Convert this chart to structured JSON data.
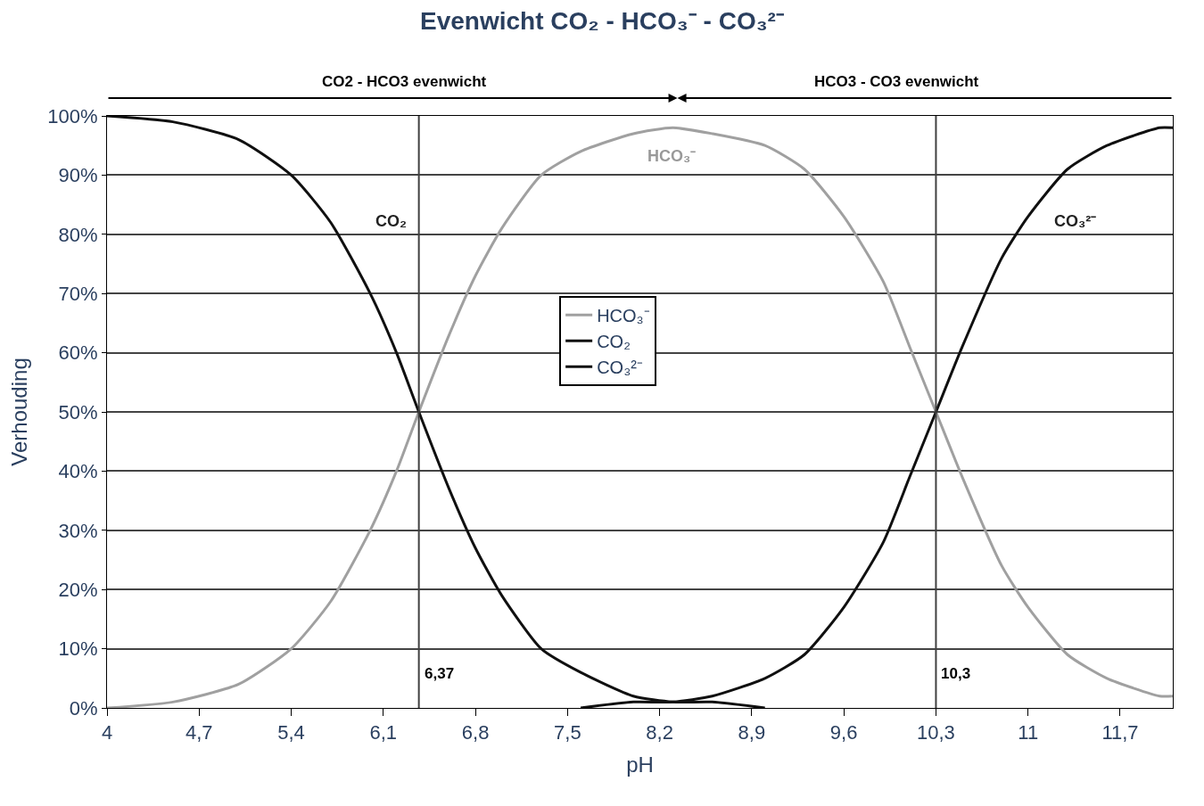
{
  "chart_data": {
    "type": "line",
    "title": "Evenwicht CO₂ - HCO₃⁻ - CO₃²⁻",
    "xlabel": "pH",
    "ylabel": "Verhouding",
    "xlim": [
      4,
      12.1
    ],
    "xticks": [
      {
        "value": 4,
        "label": "4"
      },
      {
        "value": 4.7,
        "label": "4,7"
      },
      {
        "value": 5.4,
        "label": "5,4"
      },
      {
        "value": 6.1,
        "label": "6,1"
      },
      {
        "value": 6.8,
        "label": "6,8"
      },
      {
        "value": 7.5,
        "label": "7,5"
      },
      {
        "value": 8.2,
        "label": "8,2"
      },
      {
        "value": 8.9,
        "label": "8,9"
      },
      {
        "value": 9.6,
        "label": "9,6"
      },
      {
        "value": 10.3,
        "label": "10,3"
      },
      {
        "value": 11,
        "label": "11"
      },
      {
        "value": 11.7,
        "label": "11,7"
      }
    ],
    "ylim": [
      0,
      100
    ],
    "yticks": [
      {
        "value": 0,
        "label": "0%"
      },
      {
        "value": 10,
        "label": "10%"
      },
      {
        "value": 20,
        "label": "20%"
      },
      {
        "value": 30,
        "label": "30%"
      },
      {
        "value": 40,
        "label": "40%"
      },
      {
        "value": 50,
        "label": "50%"
      },
      {
        "value": 60,
        "label": "60%"
      },
      {
        "value": 70,
        "label": "70%"
      },
      {
        "value": 80,
        "label": "80%"
      },
      {
        "value": 90,
        "label": "90%"
      },
      {
        "value": 100,
        "label": "100%"
      }
    ],
    "grid": "y",
    "legend": "center",
    "marker": "none",
    "line_style": "solid",
    "series": [
      {
        "name": "HCO₃⁻",
        "color": "#a0a0a0",
        "x": [
          4,
          4.5,
          5,
          5.4,
          5.7,
          6,
          6.2,
          6.37,
          6.6,
          6.8,
          7,
          7.3,
          7.6,
          8,
          8.3,
          8.6,
          9,
          9.3,
          9.6,
          9.9,
          10.1,
          10.3,
          10.5,
          10.8,
          11,
          11.3,
          11.6,
          12,
          12.1
        ],
        "values": [
          0,
          1,
          4,
          10,
          18,
          30,
          40,
          50,
          63,
          73,
          81,
          90,
          94,
          97,
          98,
          97,
          95,
          91,
          83,
          72,
          61,
          50,
          39,
          24,
          17,
          9,
          5,
          2,
          2
        ]
      },
      {
        "name": "CO₂",
        "color": "#101010",
        "x": [
          4,
          4.5,
          5,
          5.4,
          5.7,
          6,
          6.2,
          6.37,
          6.6,
          6.8,
          7,
          7.3,
          7.6,
          8,
          8.3,
          8.6,
          9
        ],
        "values": [
          100,
          99,
          96,
          90,
          82,
          70,
          60,
          50,
          37,
          27,
          19,
          10,
          6,
          2,
          1,
          1,
          0
        ]
      },
      {
        "name": "CO₃²⁻",
        "color": "#101010",
        "x": [
          7.6,
          8,
          8.3,
          8.6,
          9,
          9.3,
          9.6,
          9.9,
          10.1,
          10.3,
          10.5,
          10.8,
          11,
          11.3,
          11.6,
          12,
          12.1
        ],
        "values": [
          0,
          1,
          1,
          2,
          5,
          9,
          17,
          28,
          39,
          50,
          61,
          76,
          83,
          91,
          95,
          98,
          98
        ]
      }
    ],
    "ref_lines": [
      {
        "axis": "x",
        "value": 6.37,
        "label": "6,37",
        "color": "#404040"
      },
      {
        "axis": "x",
        "value": 10.3,
        "label": "10,3",
        "color": "#404040"
      }
    ],
    "annotations": [
      "CO2 - HCO3 evenwicht",
      "HCO3 - CO3 evenwicht",
      "CO₂",
      "HCO₃⁻",
      "CO₃²⁻"
    ]
  }
}
